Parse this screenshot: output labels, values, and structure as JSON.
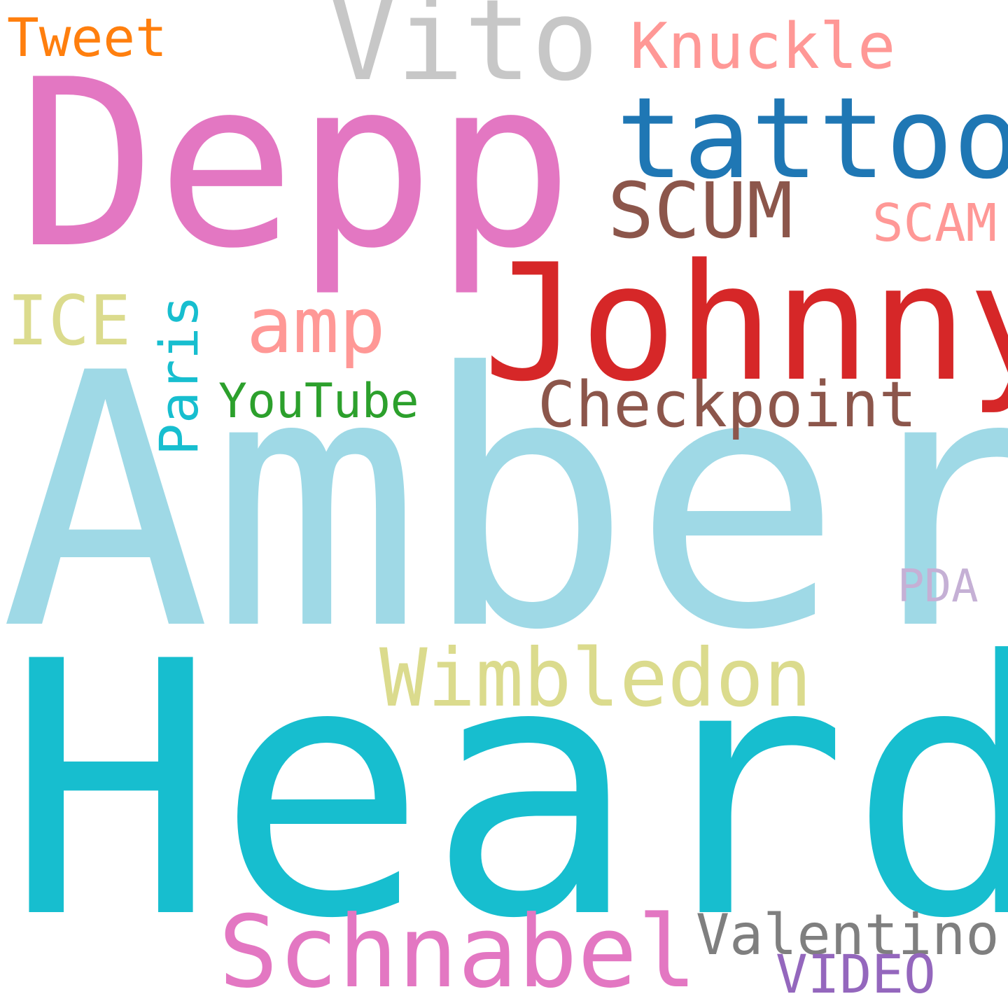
{
  "word_cloud": {
    "background": "#ffffff",
    "words": {
      "amber": {
        "text": "Amber",
        "color": "#9fd9e6"
      },
      "heard": {
        "text": "Heard",
        "color": "#17becf"
      },
      "depp": {
        "text": "Depp",
        "color": "#e377c2"
      },
      "johnny": {
        "text": "Johnny",
        "color": "#d62728"
      },
      "tattoo": {
        "text": "tattoo",
        "color": "#1f77b4"
      },
      "vito": {
        "text": "Vito",
        "color": "#c7c7c7"
      },
      "schnabel": {
        "text": "Schnabel",
        "color": "#e377c2"
      },
      "wimbledon": {
        "text": "Wimbledon",
        "color": "#dbdb8d"
      },
      "scum": {
        "text": "SCUM",
        "color": "#8c564b"
      },
      "checkpoint": {
        "text": "Checkpoint",
        "color": "#8c564b"
      },
      "amp": {
        "text": "amp",
        "color": "#ff9896"
      },
      "knuckle": {
        "text": "Knuckle",
        "color": "#ff9896"
      },
      "valentino": {
        "text": "Valentino",
        "color": "#7f7f7f"
      },
      "ice": {
        "text": "ICE",
        "color": "#dbdb8d"
      },
      "scam": {
        "text": "SCAM",
        "color": "#ff9896"
      },
      "vido": {
        "text": "VIDEO",
        "color": "#9467bd"
      },
      "tweet": {
        "text": "Tweet",
        "color": "#ff7f0e"
      },
      "youtube": {
        "text": "YouTube",
        "color": "#2ca02c"
      },
      "pda": {
        "text": "PDA",
        "color": "#c5b0d5"
      },
      "paris": {
        "text": "Paris",
        "color": "#17becf"
      }
    }
  }
}
